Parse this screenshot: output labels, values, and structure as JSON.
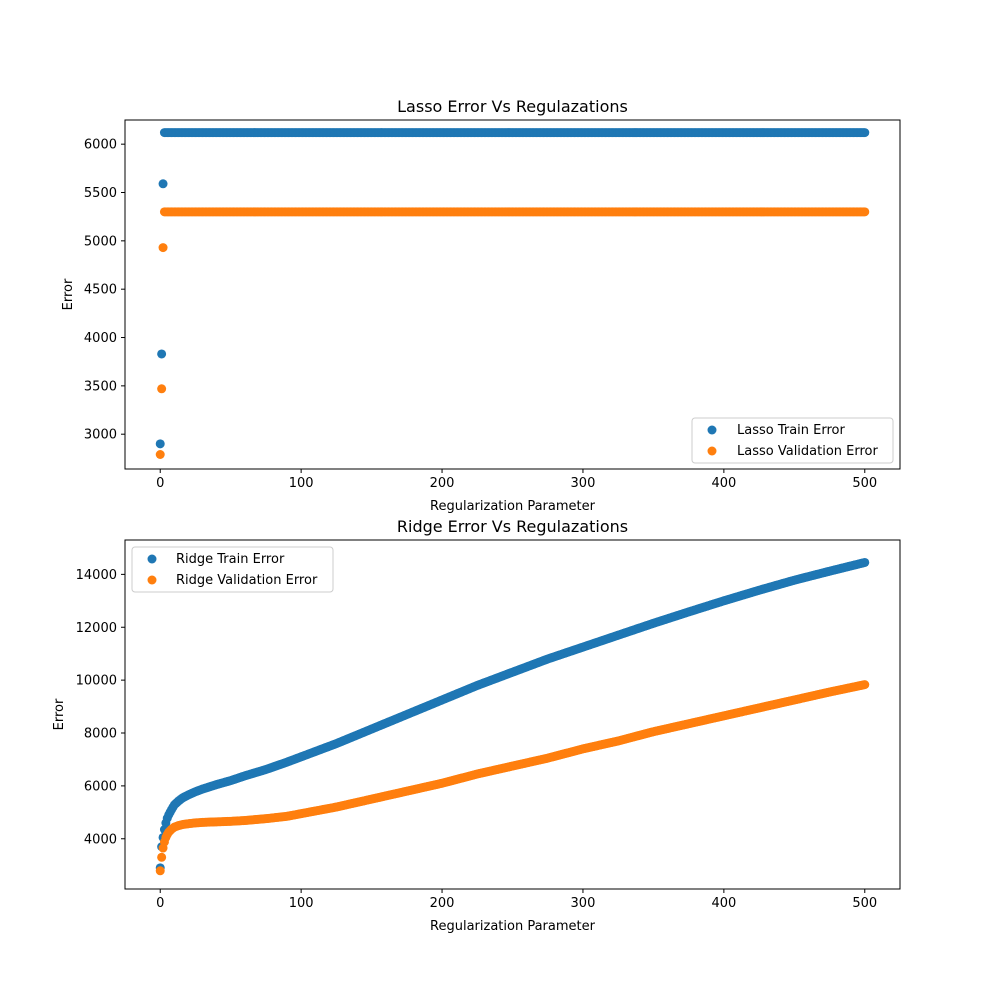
{
  "colors": {
    "train": "#1f77b4",
    "validation": "#ff7f0e"
  },
  "chart_data": [
    {
      "type": "scatter",
      "title": "Lasso Error Vs Regulazations",
      "xlabel": "Regularization Parameter",
      "ylabel": "Error",
      "xlim": [
        -25,
        525
      ],
      "ylim": [
        2640,
        6250
      ],
      "xticks": [
        0,
        100,
        200,
        300,
        400,
        500
      ],
      "yticks": [
        3000,
        3500,
        4000,
        4500,
        5000,
        5500,
        6000
      ],
      "legend_position": "lower-right",
      "series": [
        {
          "name": "Lasso Train Error",
          "color": "#1f77b4",
          "x": [
            0,
            1,
            2,
            3,
            4,
            6,
            8,
            10,
            15,
            20,
            30,
            50,
            75,
            100,
            150,
            200,
            250,
            300,
            350,
            400,
            450,
            500
          ],
          "y": [
            2900,
            3830,
            5590,
            6120,
            6120,
            6120,
            6120,
            6120,
            6120,
            6120,
            6120,
            6120,
            6120,
            6120,
            6120,
            6120,
            6120,
            6120,
            6120,
            6120,
            6120,
            6120
          ]
        },
        {
          "name": "Lasso Validation Error",
          "color": "#ff7f0e",
          "x": [
            0,
            1,
            2,
            3,
            4,
            6,
            8,
            10,
            15,
            20,
            30,
            50,
            75,
            100,
            150,
            200,
            250,
            300,
            350,
            400,
            450,
            500
          ],
          "y": [
            2790,
            3470,
            4930,
            5300,
            5300,
            5300,
            5300,
            5300,
            5300,
            5300,
            5300,
            5300,
            5300,
            5300,
            5300,
            5300,
            5300,
            5300,
            5300,
            5300,
            5300,
            5300
          ]
        }
      ]
    },
    {
      "type": "scatter",
      "title": "Ridge Error Vs Regulazations",
      "xlabel": "Regularization Parameter",
      "ylabel": "Error",
      "xlim": [
        -25,
        525
      ],
      "ylim": [
        2100,
        15300
      ],
      "xticks": [
        0,
        100,
        200,
        300,
        400,
        500
      ],
      "yticks": [
        4000,
        6000,
        8000,
        10000,
        12000,
        14000
      ],
      "legend_position": "upper-left",
      "series": [
        {
          "name": "Ridge Train Error",
          "color": "#1f77b4",
          "x": [
            0,
            1,
            2,
            3,
            4,
            5,
            6,
            8,
            10,
            13,
            16,
            20,
            25,
            30,
            40,
            50,
            60,
            75,
            90,
            100,
            125,
            150,
            175,
            200,
            225,
            250,
            275,
            300,
            325,
            350,
            375,
            400,
            425,
            450,
            475,
            500
          ],
          "y": [
            2900,
            3700,
            4050,
            4350,
            4600,
            4780,
            4900,
            5100,
            5280,
            5430,
            5550,
            5660,
            5780,
            5880,
            6050,
            6200,
            6380,
            6620,
            6900,
            7100,
            7600,
            8150,
            8700,
            9250,
            9800,
            10300,
            10800,
            11250,
            11700,
            12150,
            12580,
            13000,
            13400,
            13780,
            14120,
            14450
          ]
        },
        {
          "name": "Ridge Validation Error",
          "color": "#ff7f0e",
          "x": [
            0,
            1,
            2,
            3,
            4,
            5,
            6,
            8,
            10,
            13,
            16,
            20,
            25,
            30,
            40,
            50,
            60,
            75,
            90,
            100,
            125,
            150,
            175,
            200,
            225,
            250,
            275,
            300,
            325,
            350,
            375,
            400,
            425,
            450,
            475,
            500
          ],
          "y": [
            2790,
            3300,
            3650,
            3880,
            4050,
            4160,
            4250,
            4360,
            4440,
            4500,
            4540,
            4570,
            4600,
            4620,
            4640,
            4660,
            4690,
            4760,
            4850,
            4950,
            5200,
            5500,
            5800,
            6100,
            6450,
            6750,
            7050,
            7400,
            7700,
            8050,
            8350,
            8650,
            8950,
            9250,
            9550,
            9830
          ]
        }
      ]
    }
  ]
}
